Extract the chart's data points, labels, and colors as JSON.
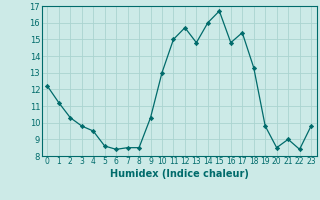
{
  "x": [
    0,
    1,
    2,
    3,
    4,
    5,
    6,
    7,
    8,
    9,
    10,
    11,
    12,
    13,
    14,
    15,
    16,
    17,
    18,
    19,
    20,
    21,
    22,
    23
  ],
  "y": [
    12.2,
    11.2,
    10.3,
    9.8,
    9.5,
    8.6,
    8.4,
    8.5,
    8.5,
    10.3,
    13.0,
    15.0,
    15.7,
    14.8,
    16.0,
    16.7,
    14.8,
    15.4,
    13.3,
    9.8,
    8.5,
    9.0,
    8.4,
    9.8
  ],
  "xlabel": "Humidex (Indice chaleur)",
  "ylim": [
    8,
    17
  ],
  "xlim": [
    -0.5,
    23.5
  ],
  "yticks": [
    8,
    9,
    10,
    11,
    12,
    13,
    14,
    15,
    16,
    17
  ],
  "xticks": [
    0,
    1,
    2,
    3,
    4,
    5,
    6,
    7,
    8,
    9,
    10,
    11,
    12,
    13,
    14,
    15,
    16,
    17,
    18,
    19,
    20,
    21,
    22,
    23
  ],
  "line_color": "#006b6b",
  "marker": "D",
  "marker_size": 2.2,
  "bg_color": "#cceae7",
  "grid_color": "#aad4d0",
  "xlabel_fontsize": 7,
  "tick_fontsize": 5.5,
  "ytick_fontsize": 6
}
